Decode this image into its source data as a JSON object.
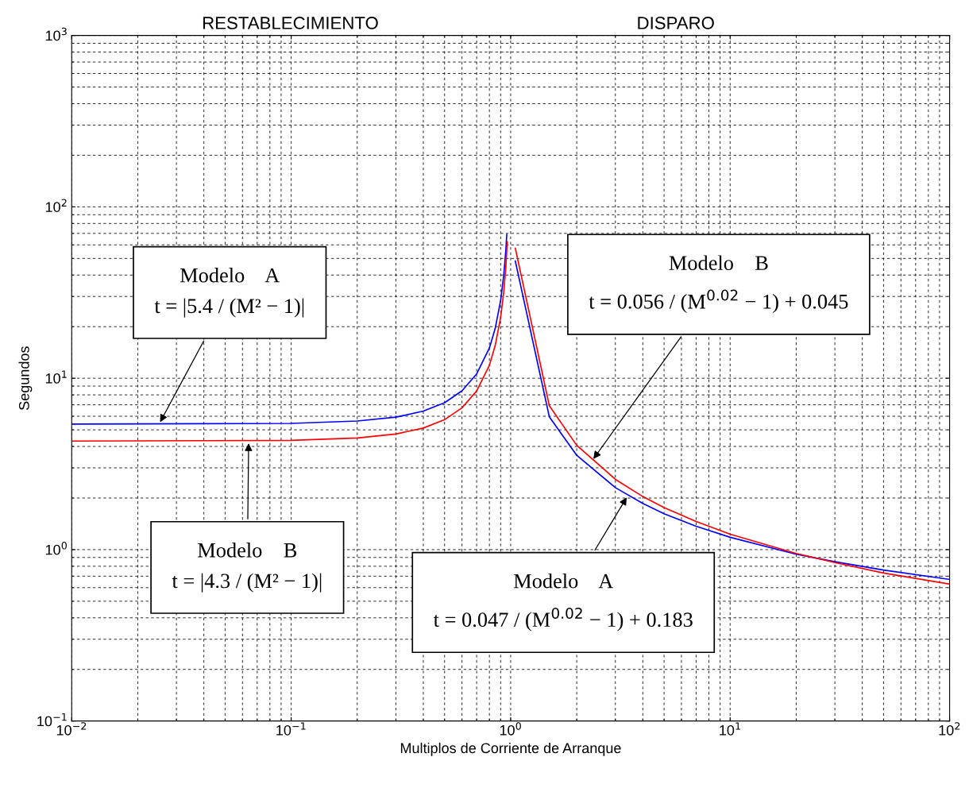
{
  "chart_data": {
    "type": "line",
    "xlabel": "Multiplos de Corriente de Arranque",
    "ylabel": "Segundos",
    "log": "xy",
    "grid": true,
    "marker": "none",
    "line_style": "solid",
    "xlim": [
      0.01,
      100
    ],
    "ylim": [
      0.1,
      1000
    ],
    "xticks": [
      {
        "value": 0.01,
        "label": "10$^{−2}$"
      },
      {
        "value": 0.1,
        "label": "10$^{−1}$"
      },
      {
        "value": 1,
        "label": "10$^{0}$"
      },
      {
        "value": 10,
        "label": "10$^{1}$"
      },
      {
        "value": 100,
        "label": "10$^{2}$"
      }
    ],
    "yticks": [
      {
        "value": 0.1,
        "label": "10$^{−1}$"
      },
      {
        "value": 1,
        "label": "10$^{0}$"
      },
      {
        "value": 10,
        "label": "10$^{1}$"
      },
      {
        "value": 100,
        "label": "10$^{2}$"
      },
      {
        "value": 1000,
        "label": "10$^{3}$"
      }
    ],
    "series": [
      {
        "color": "#0000ff",
        "x": [
          0.01,
          0.1,
          0.2,
          0.3,
          0.4,
          0.5,
          0.6,
          0.7,
          0.8,
          0.85,
          0.9,
          0.93,
          0.95,
          0.96
        ],
        "values": [
          5.4,
          5.45,
          5.63,
          5.93,
          6.43,
          7.2,
          8.44,
          10.6,
          15.0,
          19.5,
          28.4,
          39.9,
          55.4,
          68.9
        ]
      },
      {
        "color": "#ff0000",
        "x": [
          0.01,
          0.1,
          0.2,
          0.3,
          0.4,
          0.5,
          0.6,
          0.7,
          0.8,
          0.85,
          0.9,
          0.93,
          0.95,
          0.965
        ],
        "values": [
          4.3,
          4.34,
          4.48,
          4.73,
          5.12,
          5.73,
          6.72,
          8.43,
          11.9,
          15.5,
          22.6,
          31.8,
          44.1,
          62.5
        ]
      },
      {
        "color": "#0000ff",
        "x": [
          1.05,
          1.5,
          2,
          3,
          4,
          5,
          7,
          10,
          20,
          30,
          50,
          100
        ],
        "values": [
          48.3,
          5.96,
          3.55,
          2.3,
          1.86,
          1.62,
          1.37,
          1.18,
          0.94,
          0.85,
          0.76,
          0.67
        ]
      },
      {
        "color": "#ff0000",
        "x": [
          1.05,
          1.5,
          2,
          3,
          4,
          5,
          7,
          10,
          20,
          30,
          50,
          100
        ],
        "values": [
          57.4,
          6.92,
          4.06,
          2.57,
          2.04,
          1.76,
          1.46,
          1.23,
          0.95,
          0.84,
          0.73,
          0.63
        ]
      }
    ],
    "annotations": [
      "RESTABLECIMIENTO",
      "DISPARO",
      {
        "text": "Modelo    A\nt = |5.4 / (M² − 1)|",
        "x": 0.025,
        "y": 5.4
      },
      {
        "text": "Modelo    B\nt = |4.3 / (M² − 1)|",
        "x": 0.064,
        "y": 4.3
      },
      {
        "text": "Modelo    B\nt = 0.056 / (M$^{0.02}$ − 1) + 0.045",
        "x": 2.35,
        "y": 3.3
      },
      {
        "text": "Modelo    A\nt = 0.047 / (M$^{0.02}$ − 1) + 0.183",
        "x": 3.42,
        "y": 2.07
      }
    ]
  }
}
